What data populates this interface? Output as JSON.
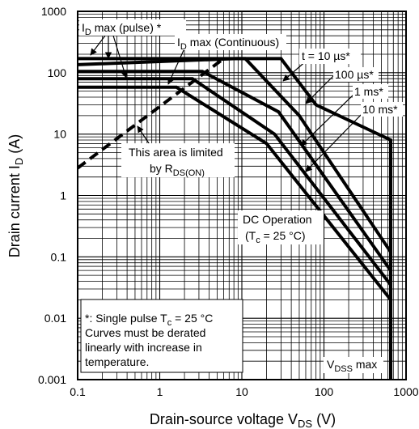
{
  "chart_data": {
    "type": "line",
    "x_scale": "log",
    "y_scale": "log",
    "xlim": [
      0.1,
      1000
    ],
    "ylim": [
      0.001,
      1000
    ],
    "grid": true,
    "xlabel": {
      "main": "Drain-source voltage  V",
      "sub": "DS",
      "unit": " (V)"
    },
    "ylabel": {
      "main": "Drain current  I",
      "sub": "D",
      "unit": " (A)"
    },
    "x_ticks": [
      {
        "value": 0.1,
        "label": "0.1"
      },
      {
        "value": 1,
        "label": "1"
      },
      {
        "value": 10,
        "label": "10"
      },
      {
        "value": 100,
        "label": "100"
      },
      {
        "value": 1000,
        "label": "1000"
      }
    ],
    "y_ticks": [
      {
        "value": 0.001,
        "label": "0.001"
      },
      {
        "value": 0.01,
        "label": "0.01"
      },
      {
        "value": 0.1,
        "label": "0.1"
      },
      {
        "value": 1,
        "label": "1"
      },
      {
        "value": 10,
        "label": "10"
      },
      {
        "value": 100,
        "label": "100"
      },
      {
        "value": 1000,
        "label": "1000"
      }
    ],
    "series": [
      {
        "name": "t = 10 µs*",
        "style": "solid",
        "points": [
          [
            0.1,
            170
          ],
          [
            30,
            170
          ],
          [
            80,
            30
          ],
          [
            650,
            8
          ],
          [
            650,
            0.001
          ]
        ]
      },
      {
        "name": "100 µs*",
        "style": "solid",
        "points": [
          [
            0.1,
            135
          ],
          [
            8.5,
            170
          ],
          [
            11,
            170
          ],
          [
            50,
            20
          ],
          [
            650,
            0.12
          ],
          [
            650,
            0.001
          ]
        ]
      },
      {
        "name": "1 ms*",
        "style": "solid",
        "points": [
          [
            0.1,
            105
          ],
          [
            3.3,
            105
          ],
          [
            28,
            23
          ],
          [
            650,
            0.06
          ],
          [
            650,
            0.001
          ]
        ]
      },
      {
        "name": "10 ms*",
        "style": "solid",
        "points": [
          [
            0.1,
            80
          ],
          [
            2.5,
            80
          ],
          [
            25,
            10
          ],
          [
            650,
            0.035
          ],
          [
            650,
            0.001
          ]
        ]
      },
      {
        "name": "DC Operation",
        "style": "solid",
        "points": [
          [
            0.1,
            58
          ],
          [
            1.6,
            58
          ],
          [
            20,
            7
          ],
          [
            650,
            0.02
          ],
          [
            650,
            0.001
          ]
        ]
      },
      {
        "name": "This area is limited by R DS(ON)",
        "style": "dashed",
        "points": [
          [
            0.1,
            2.8
          ],
          [
            6,
            170
          ]
        ]
      }
    ],
    "annotations": {
      "id_pulse": {
        "main": "I",
        "sub": "D",
        "rest": " max (pulse) *"
      },
      "id_cont": {
        "main": "I",
        "sub": "D",
        "rest": " max (Continuous)"
      },
      "t10us": "t = 10 µs*",
      "t100us": "100 µs*",
      "t1ms": "1 ms*",
      "t10ms": "10 ms*",
      "area_line1": "This area is limited",
      "area_line2_main": "by R",
      "area_line2_sub": "DS(ON)",
      "dc_line1": "DC Operation",
      "dc_line2_open": "(T",
      "dc_line2_sub": "c",
      "dc_line2_rest": " = 25 °C)",
      "note_line1_a": "*: Single pulse T",
      "note_line1_sub": "c",
      "note_line1_b": " = 25 °C",
      "note_line2": "Curves must be derated",
      "note_line3": "linearly with increase in",
      "note_line4": "temperature.",
      "vdss_main": "V",
      "vdss_sub": "DSS",
      "vdss_rest": " max"
    },
    "colors": {
      "line": "#000000",
      "grid": "#000000",
      "background": "#ffffff"
    }
  }
}
